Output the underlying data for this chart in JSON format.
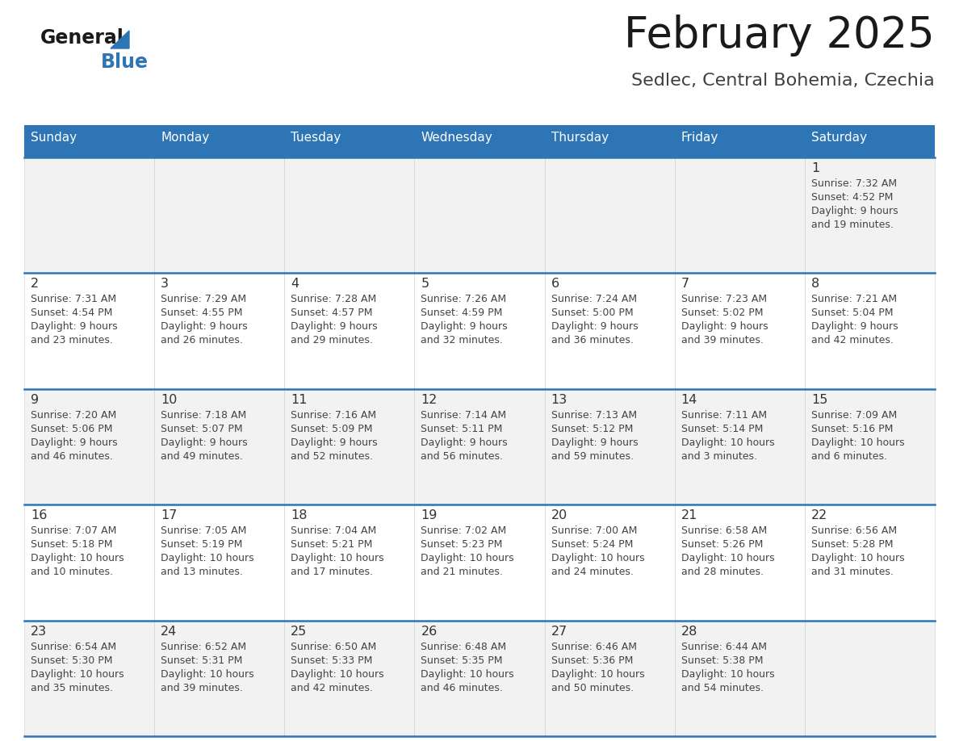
{
  "title": "February 2025",
  "subtitle": "Sedlec, Central Bohemia, Czechia",
  "header_bg": "#2E75B6",
  "header_text_color": "#FFFFFF",
  "cell_bg_odd": "#F2F2F2",
  "cell_bg_even": "#FFFFFF",
  "day_names": [
    "Sunday",
    "Monday",
    "Tuesday",
    "Wednesday",
    "Thursday",
    "Friday",
    "Saturday"
  ],
  "logo_color1": "#1a1a1a",
  "logo_color2": "#2E75B6",
  "weeks": [
    [
      {
        "day": null,
        "sunrise": null,
        "sunset": null,
        "daylight": null
      },
      {
        "day": null,
        "sunrise": null,
        "sunset": null,
        "daylight": null
      },
      {
        "day": null,
        "sunrise": null,
        "sunset": null,
        "daylight": null
      },
      {
        "day": null,
        "sunrise": null,
        "sunset": null,
        "daylight": null
      },
      {
        "day": null,
        "sunrise": null,
        "sunset": null,
        "daylight": null
      },
      {
        "day": null,
        "sunrise": null,
        "sunset": null,
        "daylight": null
      },
      {
        "day": 1,
        "sunrise": "7:32 AM",
        "sunset": "4:52 PM",
        "daylight_line1": "Daylight: 9 hours",
        "daylight_line2": "and 19 minutes."
      }
    ],
    [
      {
        "day": 2,
        "sunrise": "7:31 AM",
        "sunset": "4:54 PM",
        "daylight_line1": "Daylight: 9 hours",
        "daylight_line2": "and 23 minutes."
      },
      {
        "day": 3,
        "sunrise": "7:29 AM",
        "sunset": "4:55 PM",
        "daylight_line1": "Daylight: 9 hours",
        "daylight_line2": "and 26 minutes."
      },
      {
        "day": 4,
        "sunrise": "7:28 AM",
        "sunset": "4:57 PM",
        "daylight_line1": "Daylight: 9 hours",
        "daylight_line2": "and 29 minutes."
      },
      {
        "day": 5,
        "sunrise": "7:26 AM",
        "sunset": "4:59 PM",
        "daylight_line1": "Daylight: 9 hours",
        "daylight_line2": "and 32 minutes."
      },
      {
        "day": 6,
        "sunrise": "7:24 AM",
        "sunset": "5:00 PM",
        "daylight_line1": "Daylight: 9 hours",
        "daylight_line2": "and 36 minutes."
      },
      {
        "day": 7,
        "sunrise": "7:23 AM",
        "sunset": "5:02 PM",
        "daylight_line1": "Daylight: 9 hours",
        "daylight_line2": "and 39 minutes."
      },
      {
        "day": 8,
        "sunrise": "7:21 AM",
        "sunset": "5:04 PM",
        "daylight_line1": "Daylight: 9 hours",
        "daylight_line2": "and 42 minutes."
      }
    ],
    [
      {
        "day": 9,
        "sunrise": "7:20 AM",
        "sunset": "5:06 PM",
        "daylight_line1": "Daylight: 9 hours",
        "daylight_line2": "and 46 minutes."
      },
      {
        "day": 10,
        "sunrise": "7:18 AM",
        "sunset": "5:07 PM",
        "daylight_line1": "Daylight: 9 hours",
        "daylight_line2": "and 49 minutes."
      },
      {
        "day": 11,
        "sunrise": "7:16 AM",
        "sunset": "5:09 PM",
        "daylight_line1": "Daylight: 9 hours",
        "daylight_line2": "and 52 minutes."
      },
      {
        "day": 12,
        "sunrise": "7:14 AM",
        "sunset": "5:11 PM",
        "daylight_line1": "Daylight: 9 hours",
        "daylight_line2": "and 56 minutes."
      },
      {
        "day": 13,
        "sunrise": "7:13 AM",
        "sunset": "5:12 PM",
        "daylight_line1": "Daylight: 9 hours",
        "daylight_line2": "and 59 minutes."
      },
      {
        "day": 14,
        "sunrise": "7:11 AM",
        "sunset": "5:14 PM",
        "daylight_line1": "Daylight: 10 hours",
        "daylight_line2": "and 3 minutes."
      },
      {
        "day": 15,
        "sunrise": "7:09 AM",
        "sunset": "5:16 PM",
        "daylight_line1": "Daylight: 10 hours",
        "daylight_line2": "and 6 minutes."
      }
    ],
    [
      {
        "day": 16,
        "sunrise": "7:07 AM",
        "sunset": "5:18 PM",
        "daylight_line1": "Daylight: 10 hours",
        "daylight_line2": "and 10 minutes."
      },
      {
        "day": 17,
        "sunrise": "7:05 AM",
        "sunset": "5:19 PM",
        "daylight_line1": "Daylight: 10 hours",
        "daylight_line2": "and 13 minutes."
      },
      {
        "day": 18,
        "sunrise": "7:04 AM",
        "sunset": "5:21 PM",
        "daylight_line1": "Daylight: 10 hours",
        "daylight_line2": "and 17 minutes."
      },
      {
        "day": 19,
        "sunrise": "7:02 AM",
        "sunset": "5:23 PM",
        "daylight_line1": "Daylight: 10 hours",
        "daylight_line2": "and 21 minutes."
      },
      {
        "day": 20,
        "sunrise": "7:00 AM",
        "sunset": "5:24 PM",
        "daylight_line1": "Daylight: 10 hours",
        "daylight_line2": "and 24 minutes."
      },
      {
        "day": 21,
        "sunrise": "6:58 AM",
        "sunset": "5:26 PM",
        "daylight_line1": "Daylight: 10 hours",
        "daylight_line2": "and 28 minutes."
      },
      {
        "day": 22,
        "sunrise": "6:56 AM",
        "sunset": "5:28 PM",
        "daylight_line1": "Daylight: 10 hours",
        "daylight_line2": "and 31 minutes."
      }
    ],
    [
      {
        "day": 23,
        "sunrise": "6:54 AM",
        "sunset": "5:30 PM",
        "daylight_line1": "Daylight: 10 hours",
        "daylight_line2": "and 35 minutes."
      },
      {
        "day": 24,
        "sunrise": "6:52 AM",
        "sunset": "5:31 PM",
        "daylight_line1": "Daylight: 10 hours",
        "daylight_line2": "and 39 minutes."
      },
      {
        "day": 25,
        "sunrise": "6:50 AM",
        "sunset": "5:33 PM",
        "daylight_line1": "Daylight: 10 hours",
        "daylight_line2": "and 42 minutes."
      },
      {
        "day": 26,
        "sunrise": "6:48 AM",
        "sunset": "5:35 PM",
        "daylight_line1": "Daylight: 10 hours",
        "daylight_line2": "and 46 minutes."
      },
      {
        "day": 27,
        "sunrise": "6:46 AM",
        "sunset": "5:36 PM",
        "daylight_line1": "Daylight: 10 hours",
        "daylight_line2": "and 50 minutes."
      },
      {
        "day": 28,
        "sunrise": "6:44 AM",
        "sunset": "5:38 PM",
        "daylight_line1": "Daylight: 10 hours",
        "daylight_line2": "and 54 minutes."
      },
      {
        "day": null,
        "sunrise": null,
        "sunset": null,
        "daylight_line1": null,
        "daylight_line2": null
      }
    ]
  ]
}
